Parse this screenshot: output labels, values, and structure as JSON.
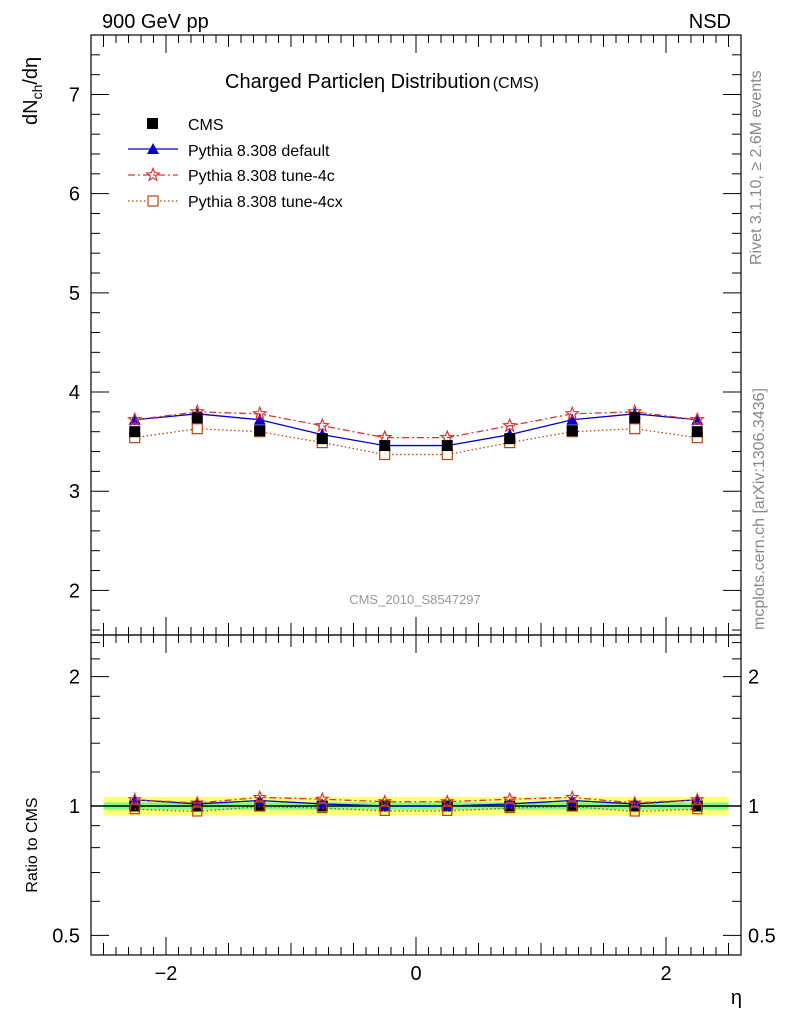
{
  "header": {
    "left": "900 GeV pp",
    "right": "NSD"
  },
  "side_labels": {
    "rivet": "Rivet 3.1.10, ≥ 2.6M events",
    "mcplots": "mcplots.cern.ch [arXiv:1306.3436]"
  },
  "watermark": "CMS_2010_S8547297",
  "chart_data": [
    {
      "type": "line",
      "title": "Charged Particleη Distribution",
      "title_suffix": "(CMS)",
      "ylabel": "dN_ch/dη",
      "ylim": [
        1.55,
        7.6
      ],
      "xlim": [
        -2.6,
        2.6
      ],
      "yticks": [
        2,
        3,
        4,
        5,
        6,
        7
      ],
      "legend_position": "top-left",
      "x": [
        -2.25,
        -1.75,
        -1.25,
        -0.75,
        -0.25,
        0.25,
        0.75,
        1.25,
        1.75,
        2.25
      ],
      "series": [
        {
          "name": "CMS",
          "marker": "filled-square",
          "color": "#000000",
          "style": "points",
          "values": [
            3.6,
            3.74,
            3.61,
            3.53,
            3.46,
            3.46,
            3.53,
            3.61,
            3.74,
            3.6
          ]
        },
        {
          "name": "Pythia 8.308 default",
          "marker": "filled-triangle",
          "color": "#0000cc",
          "style": "solid",
          "values": [
            3.72,
            3.78,
            3.72,
            3.57,
            3.46,
            3.46,
            3.57,
            3.72,
            3.78,
            3.72
          ]
        },
        {
          "name": "Pythia 8.308 tune-4c",
          "marker": "open-star",
          "color": "#dd3333",
          "style": "dashdot",
          "values": [
            3.72,
            3.8,
            3.78,
            3.66,
            3.54,
            3.54,
            3.66,
            3.78,
            3.8,
            3.72
          ]
        },
        {
          "name": "Pythia 8.308 tune-4cx",
          "marker": "open-square",
          "color": "#bb4411",
          "style": "dotted",
          "values": [
            3.54,
            3.63,
            3.6,
            3.49,
            3.37,
            3.37,
            3.49,
            3.6,
            3.63,
            3.54
          ]
        }
      ]
    },
    {
      "type": "line",
      "ylabel": "Ratio to CMS",
      "xlabel": "η",
      "ylim": [
        0.45,
        2.5
      ],
      "log_y": true,
      "yticks": [
        0.5,
        1,
        2
      ],
      "xticks": [
        -2,
        0,
        2
      ],
      "xticklabels": [
        "−2",
        "0",
        "2"
      ],
      "bands": {
        "inner": 0.02,
        "outer": 0.05,
        "inner_color": "#7fff7f",
        "outer_color": "#ffff77"
      },
      "x": [
        -2.25,
        -1.75,
        -1.25,
        -0.75,
        -0.25,
        0.25,
        0.75,
        1.25,
        1.75,
        2.25
      ],
      "series": [
        {
          "name": "Pythia 8.308 default",
          "color": "#0000cc",
          "style": "solid",
          "values": [
            1.034,
            1.011,
            1.03,
            1.011,
            1.0,
            1.0,
            1.011,
            1.03,
            1.011,
            1.034
          ]
        },
        {
          "name": "Pythia 8.308 tune-4c",
          "color": "#dd3333",
          "style": "dashdot",
          "values": [
            1.034,
            1.016,
            1.047,
            1.037,
            1.023,
            1.023,
            1.037,
            1.047,
            1.016,
            1.034
          ]
        },
        {
          "name": "Pythia 8.308 tune-4cx",
          "color": "#bb4411",
          "style": "dotted",
          "values": [
            0.983,
            0.971,
            0.997,
            0.989,
            0.974,
            0.974,
            0.989,
            0.997,
            0.971,
            0.983
          ]
        }
      ]
    }
  ]
}
